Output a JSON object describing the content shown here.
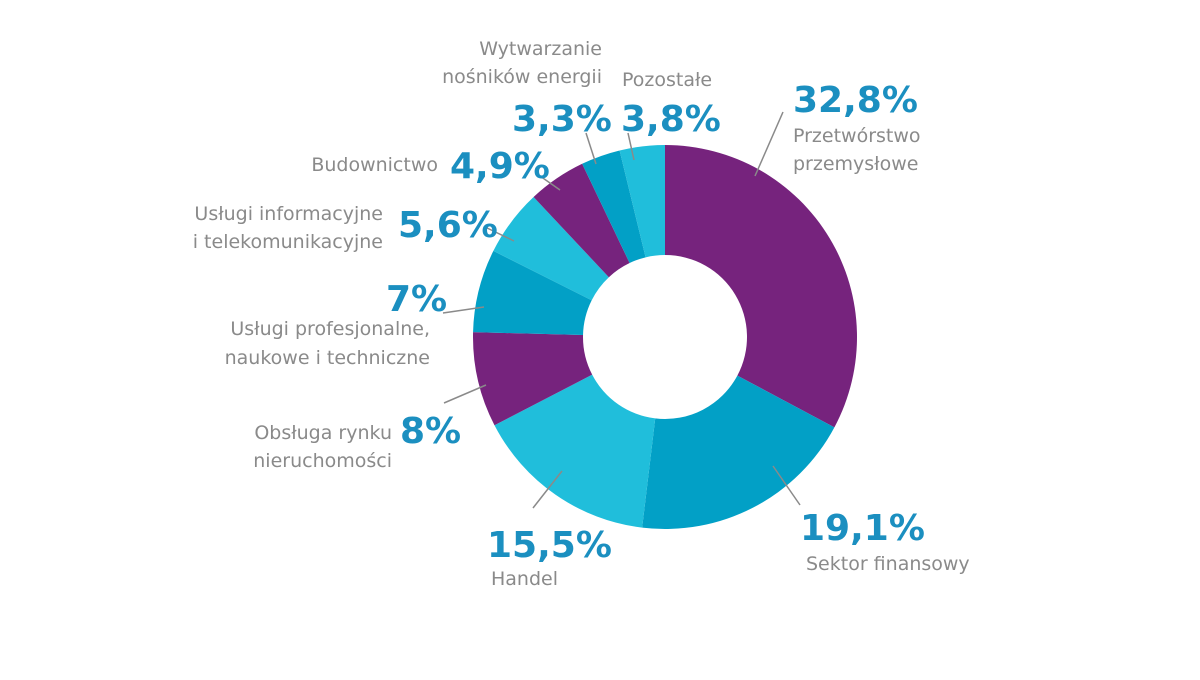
{
  "chart_data": {
    "type": "pie",
    "colors": {
      "purple": "#76237d",
      "blue": "#02a0c6",
      "light_blue": "#20bedb",
      "percent_text": "#1b8fc0",
      "label_text": "#8a8a8a"
    },
    "slices": [
      {
        "label_lines": [
          "Przetwórstwo",
          "przemysłowe"
        ],
        "value": 32.8,
        "value_label": "32,8%",
        "color": "#76237d"
      },
      {
        "label_lines": [
          "Sektor finansowy"
        ],
        "value": 19.1,
        "value_label": "19,1%",
        "color": "#02a0c6"
      },
      {
        "label_lines": [
          "Handel"
        ],
        "value": 15.5,
        "value_label": "15,5%",
        "color": "#20bedb"
      },
      {
        "label_lines": [
          "Obsługa rynku",
          "nieruchomości"
        ],
        "value": 8,
        "value_label": "8%",
        "color": "#76237d"
      },
      {
        "label_lines": [
          "Usługi profesjonalne,",
          "naukowe i techniczne"
        ],
        "value": 7,
        "value_label": "7%",
        "color": "#02a0c6"
      },
      {
        "label_lines": [
          "Usługi informacyjne",
          "i telekomunikacyjne"
        ],
        "value": 5.6,
        "value_label": "5,6%",
        "color": "#20bedb"
      },
      {
        "label_lines": [
          "Budownictwo"
        ],
        "value": 4.9,
        "value_label": "4,9%",
        "color": "#76237d"
      },
      {
        "label_lines": [
          "Wytwarzanie",
          "nośników energii"
        ],
        "value": 3.3,
        "value_label": "3,3%",
        "color": "#02a0c6"
      },
      {
        "label_lines": [
          "Pozostałe"
        ],
        "value": 3.8,
        "value_label": "3,8%",
        "color": "#20bedb"
      }
    ]
  }
}
